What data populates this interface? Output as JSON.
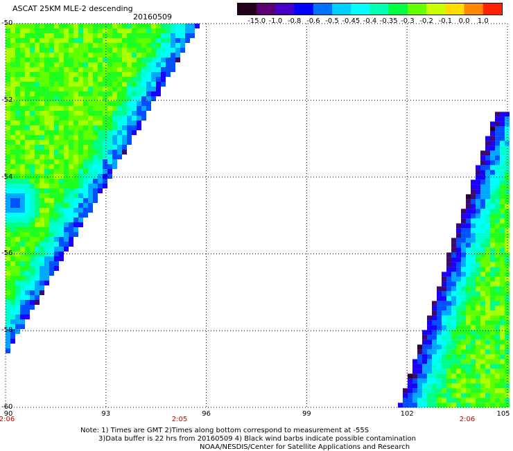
{
  "header": {
    "title": "ASCAT 25KM MLE-2 descending",
    "date": "20160509"
  },
  "colorbar": {
    "labels": [
      "-15.0",
      "-1.0",
      "-0.8",
      "-0.6",
      "-0.5",
      "-0.45",
      "-0.4",
      "-0.35",
      "-0.3",
      "-0.2",
      "-0.1",
      "0.0",
      "1.0"
    ],
    "colors": [
      "#24001c",
      "#5a0072",
      "#4400c8",
      "#0000ff",
      "#0070ff",
      "#00d0ff",
      "#00ffff",
      "#00ffb0",
      "#00ff40",
      "#66ff00",
      "#ccff00",
      "#ffdd00",
      "#ff8800",
      "#ff2200"
    ]
  },
  "axes": {
    "lat_labels": [
      "-50",
      "-52",
      "-54",
      "-56",
      "-58",
      "-60"
    ],
    "lon_labels": [
      "90",
      "93",
      "96",
      "99",
      "102",
      "105"
    ],
    "time_labels": [
      "2:06",
      "2:05",
      "2:06"
    ]
  },
  "map": {
    "lon_range": [
      90,
      105
    ],
    "lat_range": [
      -60,
      -50
    ],
    "swaths": [
      {
        "name": "western-swath",
        "edge_top_lon": 95.7,
        "edge_bottom_lon": 90.0,
        "bottom_lat": -58.5
      },
      {
        "name": "eastern-swath",
        "edge_top_lon": 104.7,
        "edge_bottom_lon": 101.8,
        "top_lat": -52.3
      }
    ]
  },
  "notes": {
    "line1": "Note: 1) Times are GMT 2)Times along bottom correspond to measurement at -55S",
    "line2": "3)Data buffer is 22 hrs from 20160509 4) Black wind barbs indicate possible contamination",
    "line3": "NOAA/NESDIS/Center for Satellite Applications and Research"
  }
}
